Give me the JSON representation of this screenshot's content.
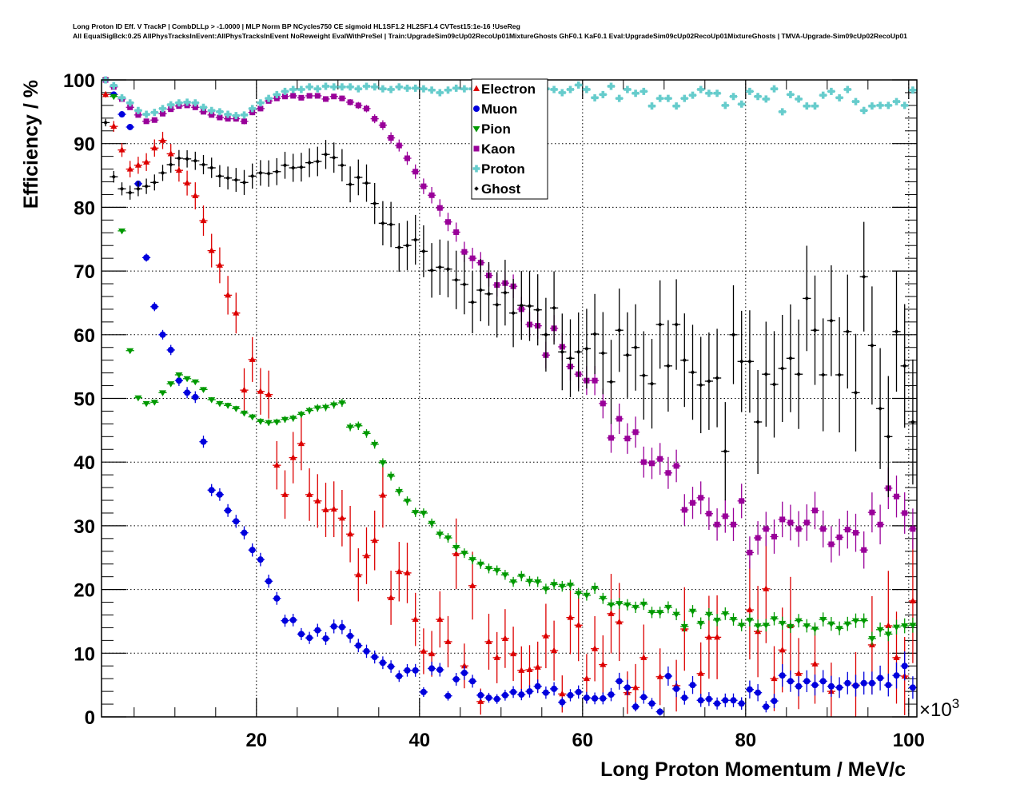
{
  "title_lines": [
    "Long Proton ID Eff. V TrackP | CombDLLp > -1.0000 | MLP Norm BP NCycles750 CE sigmoid HL1SF1.2 HL2SF1.4 CVTest15:1e-16 !UseReg",
    "All EqualSigBck:0.25 AllPhysTracksInEvent:AllPhysTracksInEvent NoReweight EvalWithPreSel | Train:UpgradeSim09cUp02RecoUp01MixtureGhosts GhF0.1 KaF0.1 Eval:UpgradeSim09cUp02RecoUp01MixtureGhosts | TMVA-Upgrade-Sim09cUp02RecoUp01"
  ],
  "chart_data": {
    "type": "scatter",
    "xlabel": "Long Proton Momentum / MeV/c",
    "x_multiplier": "×10",
    "x_multiplier_exp": "3",
    "ylabel": "Efficiency / %",
    "xlim": [
      1,
      101
    ],
    "ylim": [
      0,
      100
    ],
    "xticks": [
      "20",
      "40",
      "60",
      "80",
      "100"
    ],
    "xtick_values": [
      20,
      40,
      60,
      80,
      100
    ],
    "yticks": [
      "0",
      "10",
      "20",
      "30",
      "40",
      "50",
      "60",
      "70",
      "80",
      "90",
      "100"
    ],
    "ytick_values": [
      0,
      10,
      20,
      30,
      40,
      50,
      60,
      70,
      80,
      90,
      100
    ],
    "grid": true,
    "legend_placement": "top-center",
    "bin_start": 1.5,
    "bin_width": 1,
    "series": [
      {
        "name": "Electron",
        "color": "#dd0000",
        "marker": "triangle-up",
        "values": [
          97.7,
          92.7,
          89.0,
          86.0,
          86.6,
          87.1,
          89.3,
          90.5,
          88.4,
          85.8,
          83.8,
          81.8,
          77.9,
          73.2,
          70.9,
          66.2,
          63.4,
          51.3,
          56.1,
          51.1,
          50.6,
          39.5,
          34.9,
          40.7,
          42.9,
          34.9,
          33.9,
          32.5,
          32.6,
          31.2,
          28.7,
          22.3,
          25.3,
          27.7,
          34.8,
          18.7,
          22.8,
          22.6,
          15.3,
          10.3,
          9.9,
          15.3,
          11.8,
          25.6,
          8.0,
          20.6,
          2.4,
          11.8,
          9.3,
          12.3,
          9.9,
          7.3,
          7.4,
          7.8,
          12.7,
          10.4,
          3.6,
          15.6,
          14.4,
          6.0,
          10.7,
          8.2,
          16.2,
          14.9,
          3.8,
          4.6,
          9.3,
          null,
          6.3,
          null,
          4.9,
          13.8,
          null,
          6.8,
          12.5,
          12.5,
          null,
          null,
          null,
          16.8,
          13.4,
          20.1,
          6.0,
          10.5,
          14.3,
          6.8,
          null,
          8.3,
          null,
          4.0,
          null,
          null,
          5.0,
          null,
          11.3,
          null,
          14.3,
          9.3,
          6.4,
          18.2
        ]
      },
      {
        "name": "Muon",
        "color": "#0000dd",
        "marker": "circle",
        "values": [
          100,
          97.7,
          94.6,
          92.6,
          83.7,
          72.1,
          64.4,
          60.0,
          57.6,
          52.8,
          50.9,
          50.2,
          43.2,
          35.6,
          34.9,
          32.4,
          30.7,
          28.9,
          26.2,
          24.7,
          21.3,
          18.6,
          15.1,
          15.2,
          13.0,
          12.4,
          13.6,
          12.3,
          14.2,
          14.1,
          12.7,
          11.2,
          10.3,
          9.4,
          8.5,
          7.9,
          6.4,
          7.3,
          7.3,
          3.9,
          7.6,
          7.4,
          3.3,
          5.9,
          6.9,
          5.6,
          3.4,
          3.0,
          2.8,
          3.4,
          3.9,
          3.5,
          4.0,
          4.8,
          3.8,
          4.4,
          2.3,
          3.4,
          3.9,
          3.0,
          2.9,
          2.9,
          3.5,
          5.6,
          4.6,
          1.6,
          3.1,
          2.1,
          0.8,
          6.4,
          4.4,
          3.0,
          5.0,
          2.6,
          2.8,
          2.1,
          2.6,
          2.6,
          2.1,
          4.3,
          3.8,
          1.6,
          2.5,
          6.5,
          5.6,
          4.8,
          5.6,
          5.0,
          5.6,
          4.8,
          4.6,
          5.3,
          4.9,
          5.3,
          5.3,
          6.1,
          5.0,
          6.5,
          8.0,
          4.6
        ]
      },
      {
        "name": "Pion",
        "color": "#009900",
        "marker": "triangle-down",
        "values": [
          100,
          97.4,
          76.3,
          57.5,
          50.1,
          49.2,
          49.4,
          50.9,
          52.3,
          53.7,
          53.1,
          52.6,
          51.4,
          49.8,
          49.2,
          48.9,
          48.4,
          47.7,
          47.1,
          46.4,
          46.2,
          46.3,
          46.7,
          46.9,
          47.5,
          48.1,
          48.5,
          48.6,
          49.0,
          49.3,
          45.5,
          45.7,
          44.5,
          42.8,
          39.9,
          37.8,
          35.4,
          33.9,
          32.1,
          32.0,
          30.4,
          28.7,
          28.1,
          26.6,
          25.7,
          24.7,
          24.0,
          23.3,
          23.0,
          22.3,
          21.2,
          22.1,
          21.3,
          21.2,
          20.1,
          20.8,
          20.5,
          20.7,
          19.4,
          19.1,
          20.2,
          18.6,
          17.6,
          17.8,
          17.6,
          17.2,
          17.7,
          16.4,
          16.4,
          17.2,
          16.1,
          14.2,
          16.6,
          14.7,
          16.1,
          15.2,
          16.2,
          15.3,
          14.4,
          15.2,
          14.3,
          14.4,
          15.4,
          14.7,
          14.2,
          15.1,
          14.3,
          13.8,
          15.3,
          14.6,
          13.9,
          14.6,
          15.1,
          15.1,
          12.3,
          13.7,
          13.0,
          14.1,
          14.3,
          14.4
        ]
      },
      {
        "name": "Kaon",
        "color": "#990099",
        "marker": "square",
        "values": [
          100,
          98.9,
          97.0,
          95.7,
          94.5,
          93.5,
          93.7,
          94.7,
          95.4,
          95.9,
          96.0,
          95.7,
          95.0,
          94.5,
          94.1,
          93.9,
          93.9,
          93.5,
          94.9,
          95.5,
          96.7,
          97.1,
          97.4,
          97.5,
          97.2,
          97.5,
          97.5,
          97.0,
          97.4,
          97.1,
          96.5,
          96.0,
          95.5,
          93.9,
          92.9,
          90.9,
          89.7,
          87.7,
          85.6,
          83.3,
          81.9,
          79.9,
          77.7,
          76.1,
          73.0,
          72.0,
          71.3,
          69.3,
          67.8,
          68.1,
          67.6,
          64.0,
          61.6,
          61.4,
          56.8,
          61.0,
          58.1,
          55.0,
          53.8,
          52.8,
          52.8,
          49.2,
          43.8,
          46.8,
          43.7,
          44.7,
          40.0,
          39.8,
          40.5,
          38.3,
          39.4,
          32.5,
          33.6,
          34.4,
          31.9,
          30.2,
          31.5,
          30.2,
          33.9,
          25.8,
          28.1,
          29.5,
          28.3,
          31.0,
          30.5,
          29.5,
          30.5,
          32.4,
          29.5,
          27.1,
          28.2,
          29.4,
          28.9,
          26.2,
          32.1,
          30.2,
          35.9,
          34.6,
          32.0,
          29.5
        ]
      },
      {
        "name": "Proton",
        "color": "#66cccc",
        "marker": "cross",
        "values": [
          100,
          99.1,
          97.2,
          96.4,
          95.2,
          94.6,
          94.9,
          95.5,
          96.1,
          96.4,
          96.5,
          96.4,
          95.7,
          95.2,
          95.0,
          94.6,
          94.4,
          94.5,
          95.5,
          96.4,
          97.1,
          97.7,
          98.2,
          98.5,
          98.5,
          98.9,
          98.6,
          99.0,
          98.9,
          98.9,
          98.9,
          98.6,
          99.0,
          98.9,
          98.6,
          98.5,
          98.9,
          98.7,
          98.7,
          98.6,
          98.4,
          98.0,
          98.4,
          98.7,
          98.6,
          98.6,
          98.5,
          98.7,
          98.4,
          98.6,
          98.5,
          98.7,
          98.3,
          98.5,
          98.6,
          98.5,
          98.0,
          98.5,
          99.2,
          98.5,
          97.2,
          97.7,
          99.0,
          97.1,
          98.5,
          97.9,
          98.2,
          95.9,
          97.1,
          97.1,
          95.9,
          97.1,
          97.6,
          98.5,
          97.9,
          97.9,
          96.0,
          97.4,
          96.2,
          98.2,
          97.4,
          97.0,
          98.6,
          95.0,
          97.7,
          97.0,
          95.9,
          95.9,
          97.6,
          98.2,
          97.2,
          98.5,
          96.6,
          95.2,
          95.9,
          96.0,
          96.0,
          96.6,
          96.0,
          98.4
        ]
      },
      {
        "name": "Ghost",
        "color": "#000000",
        "marker": "diamond",
        "values": [
          93.3,
          84.8,
          82.9,
          82.3,
          82.9,
          83.3,
          83.9,
          85.4,
          86.7,
          87.7,
          87.6,
          87.3,
          86.7,
          86.2,
          84.9,
          84.6,
          84.3,
          83.9,
          84.9,
          85.4,
          85.3,
          85.6,
          86.6,
          86.2,
          86.3,
          87.0,
          87.2,
          88.3,
          87.8,
          86.6,
          83.6,
          84.7,
          83.8,
          80.6,
          77.5,
          77.3,
          73.7,
          74.0,
          74.9,
          73.1,
          70.1,
          70.6,
          70.3,
          68.6,
          67.9,
          65.1,
          67.0,
          66.4,
          64.7,
          66.6,
          63.4,
          64.6,
          64.5,
          63.9,
          60.0,
          64.2,
          57.3,
          56.3,
          57.3,
          57.8,
          60.1,
          57.1,
          52.6,
          60.7,
          56.8,
          58.0,
          53.6,
          52.3,
          61.6,
          55.1,
          61.6,
          56.0,
          54.1,
          52.1,
          52.7,
          53.2,
          41.7,
          60.0,
          55.8,
          55.8,
          46.3,
          53.8,
          52.2,
          54.7,
          56.3,
          53.8,
          65.7,
          60.7,
          53.7,
          62.2,
          53.7,
          60.5,
          50.9,
          69.1,
          58.3,
          48.4,
          44.0,
          60.5,
          55.1,
          46.3
        ]
      }
    ]
  }
}
